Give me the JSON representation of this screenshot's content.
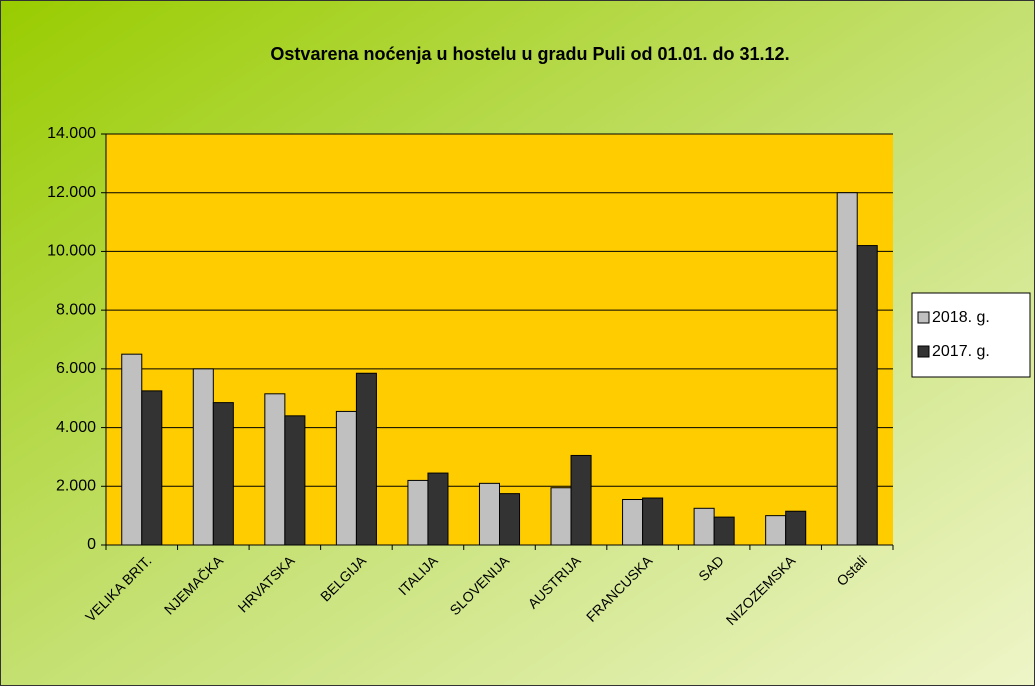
{
  "chart_data": {
    "type": "bar",
    "title": "Ostvarena noćenja  u hostelu u gradu Puli od 01.01. do 31.12.",
    "categories": [
      "VELIKA BRIT.",
      "NJEMAČKA",
      "HRVATSKA",
      "BELGIJA",
      "ITALIJA",
      "SLOVENIJA",
      "AUSTRIJA",
      "FRANCUSKA",
      "SAD",
      "NIZOZEMSKA",
      "Ostali"
    ],
    "series": [
      {
        "name": "2018. g.",
        "color": "#c0c0c0",
        "values": [
          6500,
          6000,
          5150,
          4550,
          2200,
          2100,
          1950,
          1550,
          1250,
          1000,
          12000
        ]
      },
      {
        "name": "2017. g.",
        "color": "#333333",
        "values": [
          5250,
          4850,
          4400,
          5850,
          2450,
          1750,
          3050,
          1600,
          950,
          1150,
          10200
        ]
      }
    ],
    "ylim": [
      0,
      14000
    ],
    "yticks": [
      0,
      {
        "value": 2000,
        "label": "2.000"
      },
      {
        "value": 4000,
        "label": "4.000"
      },
      {
        "value": 6000,
        "label": "6.000"
      },
      {
        "value": 8000,
        "label": "8.000"
      },
      {
        "value": 10000,
        "label": "10.000"
      },
      {
        "value": 12000,
        "label": "12.000"
      },
      {
        "value": 14000,
        "label": "14.000"
      }
    ],
    "grid": true,
    "plot_color": "#ffcc00",
    "legend": "right"
  }
}
